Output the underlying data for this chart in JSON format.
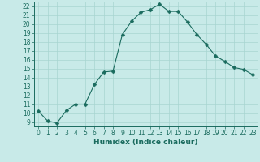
{
  "x": [
    0,
    1,
    2,
    3,
    4,
    5,
    6,
    7,
    8,
    9,
    10,
    11,
    12,
    13,
    14,
    15,
    16,
    17,
    18,
    19,
    20,
    21,
    22,
    23
  ],
  "y": [
    10.2,
    9.1,
    8.9,
    10.3,
    11.0,
    11.0,
    13.2,
    14.6,
    14.7,
    18.8,
    20.3,
    21.3,
    21.6,
    22.2,
    21.4,
    21.4,
    20.2,
    18.8,
    17.7,
    16.4,
    15.8,
    15.1,
    14.9,
    14.3
  ],
  "line_color": "#1a6b5e",
  "marker": "D",
  "marker_size": 2.5,
  "bg_color": "#c8eae8",
  "grid_color": "#a8d5d0",
  "xlabel": "Humidex (Indice chaleur)",
  "xlim": [
    -0.5,
    23.5
  ],
  "ylim": [
    8.5,
    22.5
  ],
  "yticks": [
    9,
    10,
    11,
    12,
    13,
    14,
    15,
    16,
    17,
    18,
    19,
    20,
    21,
    22
  ],
  "xticks": [
    0,
    1,
    2,
    3,
    4,
    5,
    6,
    7,
    8,
    9,
    10,
    11,
    12,
    13,
    14,
    15,
    16,
    17,
    18,
    19,
    20,
    21,
    22,
    23
  ],
  "tick_fontsize": 5.5,
  "xlabel_fontsize": 6.5,
  "tick_color": "#1a6b5e",
  "label_color": "#1a6b5e",
  "spine_color": "#1a6b5e"
}
